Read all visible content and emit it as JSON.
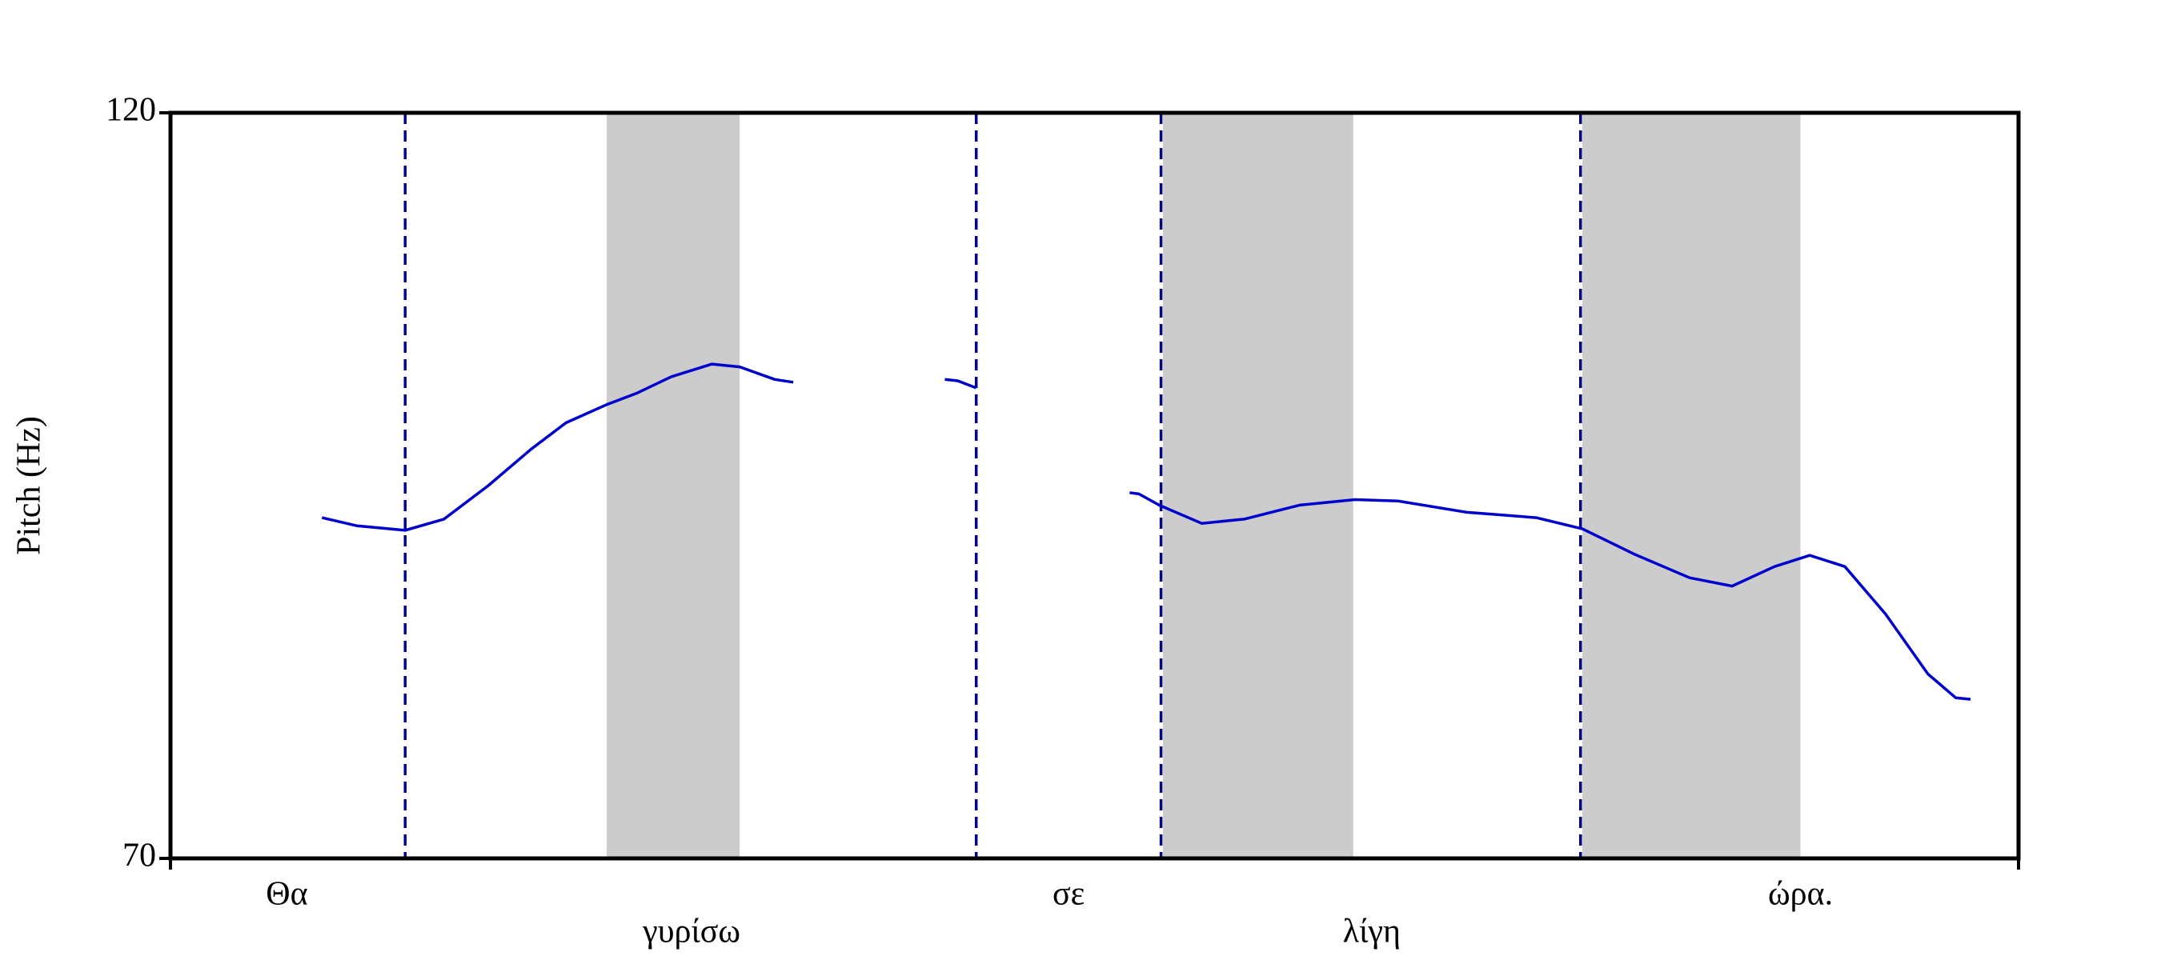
{
  "chart_data": {
    "type": "line",
    "ylabel": "Pitch (Hz)",
    "ylim": [
      70,
      120
    ],
    "yticks": [
      70,
      120
    ],
    "xlim": [
      0,
      1
    ],
    "shaded_spans": [
      [
        0.236,
        0.308
      ],
      [
        0.537,
        0.64
      ],
      [
        0.764,
        0.882
      ]
    ],
    "shade_color": "#cccccc",
    "boundaries": [
      0.127,
      0.436,
      0.536,
      0.763
    ],
    "boundary_color": "#00008b",
    "words": [
      {
        "label": "Θα",
        "x": 0.063
      },
      {
        "label": "γυρίσω",
        "x": 0.282
      },
      {
        "label": "σε",
        "x": 0.486
      },
      {
        "label": "λίγη",
        "x": 0.65
      },
      {
        "label": "ώρα.",
        "x": 0.882
      }
    ],
    "series": [
      {
        "color": "#0000cd",
        "x": [
          0.082,
          0.101,
          0.127,
          0.148,
          0.172,
          0.195,
          0.214,
          0.236,
          0.252,
          0.271,
          0.293,
          0.308,
          0.327,
          0.337
        ],
        "values": [
          92.85,
          92.3,
          92.0,
          92.75,
          95.0,
          97.43,
          99.21,
          100.43,
          101.18,
          102.3,
          103.15,
          102.96,
          102.12,
          101.93
        ]
      },
      {
        "color": "#0000cd",
        "x": [
          0.419,
          0.426,
          0.436
        ],
        "values": [
          102.12,
          102.03,
          101.55
        ]
      },
      {
        "color": "#0000cd",
        "x": [
          0.519,
          0.524,
          0.535,
          0.558,
          0.581,
          0.611,
          0.641,
          0.664,
          0.701,
          0.739,
          0.764,
          0.792,
          0.822,
          0.845,
          0.868,
          0.887,
          0.906,
          0.928,
          0.951,
          0.966,
          0.974
        ],
        "values": [
          94.53,
          94.44,
          93.69,
          92.47,
          92.75,
          93.69,
          94.06,
          93.97,
          93.22,
          92.85,
          92.1,
          90.41,
          88.82,
          88.26,
          89.57,
          90.32,
          89.57,
          86.39,
          82.36,
          80.77,
          80.67
        ]
      }
    ]
  }
}
